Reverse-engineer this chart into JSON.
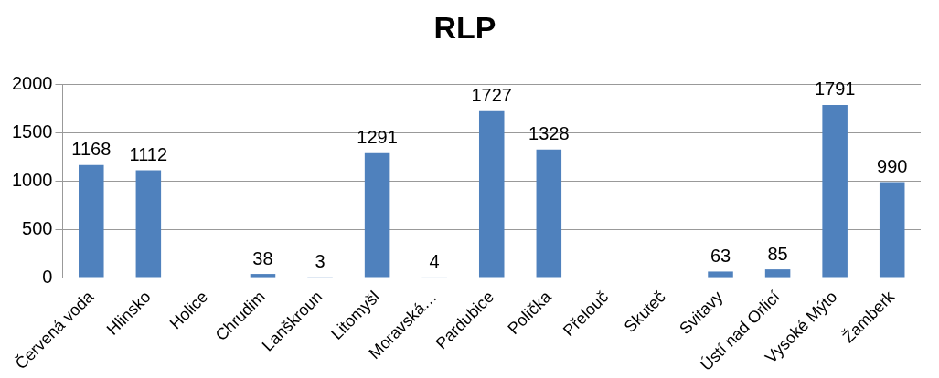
{
  "chart_data": {
    "type": "bar",
    "title": "RLP",
    "categories": [
      "Červená voda",
      "Hlinsko",
      "Holice",
      "Chrudim",
      "Lanškroun",
      "Litomyšl",
      "Moravská…",
      "Pardubice",
      "Polička",
      "Přelouč",
      "Skuteč",
      "Svitavy",
      "Ústí nad Orlicí",
      "Vysoké Mýto",
      "Žamberk"
    ],
    "values": [
      1168,
      1112,
      null,
      38,
      3,
      1291,
      4,
      1727,
      1328,
      null,
      null,
      63,
      85,
      1791,
      990
    ],
    "color": "#4f81bd",
    "ylim": [
      0,
      2000
    ],
    "yticks": [
      0,
      500,
      1000,
      1500,
      2000
    ],
    "grid": "y",
    "data_labels": true
  }
}
